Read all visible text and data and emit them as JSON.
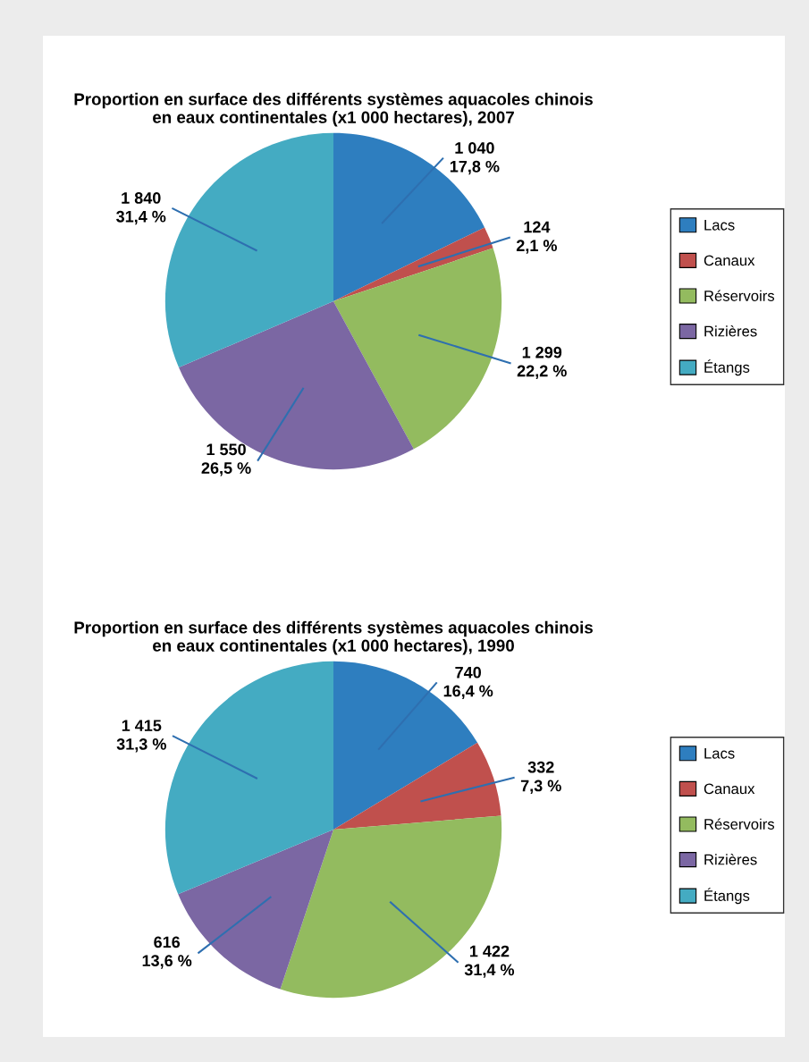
{
  "chart_data": [
    {
      "type": "pie",
      "title": "Proportion en surface des différents systèmes aquacoles chinois\nen eaux continentales (x1 000 hectares), 2007",
      "categories": [
        "Lacs",
        "Canaux",
        "Réservoirs",
        "Rizières",
        "Étangs"
      ],
      "values": [
        1040,
        124,
        1299,
        1550,
        1840
      ],
      "value_labels": [
        "1 040\n17,8 %",
        "124\n2,1 %",
        "1 299\n22,2 %",
        "1 550\n26,5 %",
        "1 840\n31,4 %"
      ],
      "colors": [
        "#2e7ebf",
        "#c0504d",
        "#93bb5f",
        "#7b67a3",
        "#44abc2"
      ],
      "legend": "right"
    },
    {
      "type": "pie",
      "title": "Proportion en surface des différents systèmes aquacoles chinois\nen eaux continentales (x1 000 hectares), 1990",
      "categories": [
        "Lacs",
        "Canaux",
        "Réservoirs",
        "Rizières",
        "Étangs"
      ],
      "values": [
        740,
        332,
        1422,
        616,
        1415
      ],
      "value_labels": [
        "740\n16,4 %",
        "332\n7,3 %",
        "1 422\n31,4 %",
        "616\n13,6 %",
        "1 415\n31,3 %"
      ],
      "colors": [
        "#2e7ebf",
        "#c0504d",
        "#93bb5f",
        "#7b67a3",
        "#44abc2"
      ],
      "legend": "right"
    }
  ]
}
